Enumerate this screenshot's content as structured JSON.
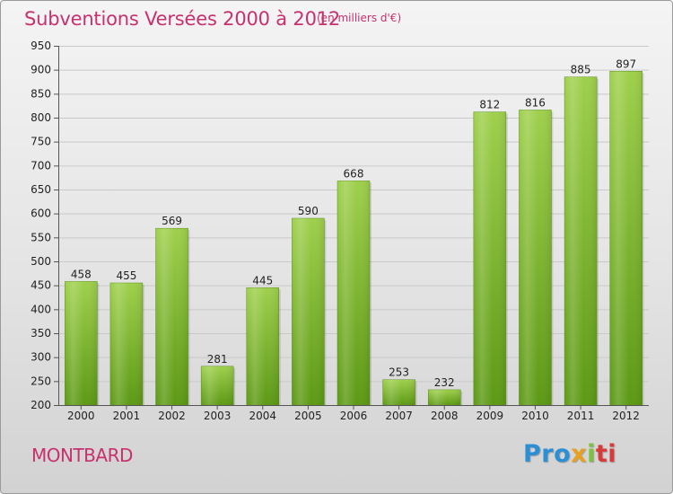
{
  "header": {
    "title": "Subventions Versées 2000 à 2012",
    "subtitle": "(en milliers d'€)"
  },
  "footer": {
    "commune": "MONTBARD",
    "logo_parts": [
      "Pro",
      "x",
      "i",
      "ti"
    ]
  },
  "colors": {
    "title": "#c8306e",
    "bar_top": "#9ccc4a",
    "bar_bottom": "#5d9a14",
    "grid": "#cccccc"
  },
  "chart_data": {
    "type": "bar",
    "title": "Subventions Versées 2000 à 2012",
    "subtitle": "(en milliers d'€)",
    "categories": [
      "2000",
      "2001",
      "2002",
      "2003",
      "2004",
      "2005",
      "2006",
      "2007",
      "2008",
      "2009",
      "2010",
      "2011",
      "2012"
    ],
    "values": [
      458,
      455,
      569,
      281,
      445,
      590,
      668,
      253,
      232,
      812,
      816,
      885,
      897
    ],
    "ylim": [
      200,
      950
    ],
    "yticks": [
      200,
      250,
      300,
      350,
      400,
      450,
      500,
      550,
      600,
      650,
      700,
      750,
      800,
      850,
      900,
      950
    ],
    "grid": true
  }
}
